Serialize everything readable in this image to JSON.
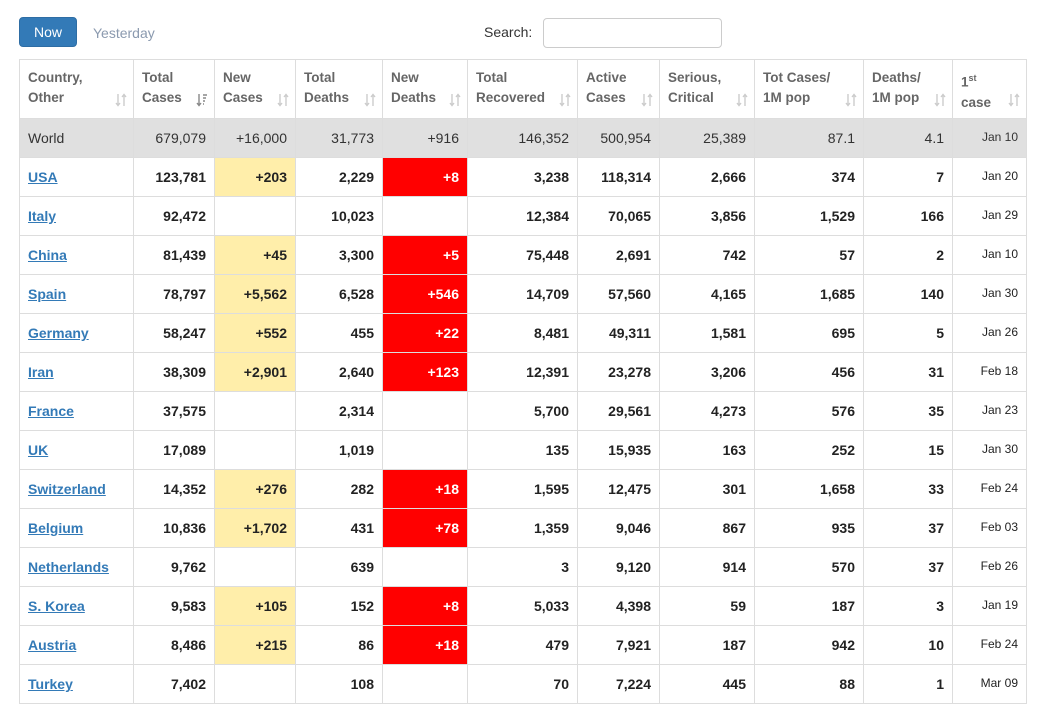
{
  "tabs": {
    "now": "Now",
    "yesterday": "Yesterday"
  },
  "search": {
    "label": "Search:",
    "value": ""
  },
  "columns": {
    "country": [
      "Country,",
      "Other"
    ],
    "total_cases": [
      "Total",
      "Cases"
    ],
    "new_cases": [
      "New",
      "Cases"
    ],
    "total_deaths": [
      "Total",
      "Deaths"
    ],
    "new_deaths": [
      "New",
      "Deaths"
    ],
    "total_recovered": [
      "Total",
      "Recovered"
    ],
    "active_cases": [
      "Active",
      "Cases"
    ],
    "serious": [
      "Serious,",
      "Critical"
    ],
    "tot_cases_1m": [
      "Tot Cases/",
      "1M pop"
    ],
    "deaths_1m": [
      "Deaths/",
      "1M pop"
    ],
    "first_case": [
      "1",
      "st",
      "case"
    ]
  },
  "world": {
    "country": "World",
    "total_cases": "679,079",
    "new_cases": "+16,000",
    "total_deaths": "31,773",
    "new_deaths": "+916",
    "total_recovered": "146,352",
    "active_cases": "500,954",
    "serious": "25,389",
    "tot_cases_1m": "87.1",
    "deaths_1m": "4.1",
    "first_case": "Jan 10"
  },
  "rows": [
    {
      "country": "USA",
      "total_cases": "123,781",
      "new_cases": "+203",
      "total_deaths": "2,229",
      "new_deaths": "+8",
      "total_recovered": "3,238",
      "active_cases": "118,314",
      "serious": "2,666",
      "tot_cases_1m": "374",
      "deaths_1m": "7",
      "first_case": "Jan 20"
    },
    {
      "country": "Italy",
      "total_cases": "92,472",
      "new_cases": "",
      "total_deaths": "10,023",
      "new_deaths": "",
      "total_recovered": "12,384",
      "active_cases": "70,065",
      "serious": "3,856",
      "tot_cases_1m": "1,529",
      "deaths_1m": "166",
      "first_case": "Jan 29"
    },
    {
      "country": "China",
      "total_cases": "81,439",
      "new_cases": "+45",
      "total_deaths": "3,300",
      "new_deaths": "+5",
      "total_recovered": "75,448",
      "active_cases": "2,691",
      "serious": "742",
      "tot_cases_1m": "57",
      "deaths_1m": "2",
      "first_case": "Jan 10"
    },
    {
      "country": "Spain",
      "total_cases": "78,797",
      "new_cases": "+5,562",
      "total_deaths": "6,528",
      "new_deaths": "+546",
      "total_recovered": "14,709",
      "active_cases": "57,560",
      "serious": "4,165",
      "tot_cases_1m": "1,685",
      "deaths_1m": "140",
      "first_case": "Jan 30"
    },
    {
      "country": "Germany",
      "total_cases": "58,247",
      "new_cases": "+552",
      "total_deaths": "455",
      "new_deaths": "+22",
      "total_recovered": "8,481",
      "active_cases": "49,311",
      "serious": "1,581",
      "tot_cases_1m": "695",
      "deaths_1m": "5",
      "first_case": "Jan 26"
    },
    {
      "country": "Iran",
      "total_cases": "38,309",
      "new_cases": "+2,901",
      "total_deaths": "2,640",
      "new_deaths": "+123",
      "total_recovered": "12,391",
      "active_cases": "23,278",
      "serious": "3,206",
      "tot_cases_1m": "456",
      "deaths_1m": "31",
      "first_case": "Feb 18"
    },
    {
      "country": "France",
      "total_cases": "37,575",
      "new_cases": "",
      "total_deaths": "2,314",
      "new_deaths": "",
      "total_recovered": "5,700",
      "active_cases": "29,561",
      "serious": "4,273",
      "tot_cases_1m": "576",
      "deaths_1m": "35",
      "first_case": "Jan 23"
    },
    {
      "country": "UK",
      "total_cases": "17,089",
      "new_cases": "",
      "total_deaths": "1,019",
      "new_deaths": "",
      "total_recovered": "135",
      "active_cases": "15,935",
      "serious": "163",
      "tot_cases_1m": "252",
      "deaths_1m": "15",
      "first_case": "Jan 30"
    },
    {
      "country": "Switzerland",
      "total_cases": "14,352",
      "new_cases": "+276",
      "total_deaths": "282",
      "new_deaths": "+18",
      "total_recovered": "1,595",
      "active_cases": "12,475",
      "serious": "301",
      "tot_cases_1m": "1,658",
      "deaths_1m": "33",
      "first_case": "Feb 24"
    },
    {
      "country": "Belgium",
      "total_cases": "10,836",
      "new_cases": "+1,702",
      "total_deaths": "431",
      "new_deaths": "+78",
      "total_recovered": "1,359",
      "active_cases": "9,046",
      "serious": "867",
      "tot_cases_1m": "935",
      "deaths_1m": "37",
      "first_case": "Feb 03"
    },
    {
      "country": "Netherlands",
      "total_cases": "9,762",
      "new_cases": "",
      "total_deaths": "639",
      "new_deaths": "",
      "total_recovered": "3",
      "active_cases": "9,120",
      "serious": "914",
      "tot_cases_1m": "570",
      "deaths_1m": "37",
      "first_case": "Feb 26"
    },
    {
      "country": "S. Korea",
      "total_cases": "9,583",
      "new_cases": "+105",
      "total_deaths": "152",
      "new_deaths": "+8",
      "total_recovered": "5,033",
      "active_cases": "4,398",
      "serious": "59",
      "tot_cases_1m": "187",
      "deaths_1m": "3",
      "first_case": "Jan 19"
    },
    {
      "country": "Austria",
      "total_cases": "8,486",
      "new_cases": "+215",
      "total_deaths": "86",
      "new_deaths": "+18",
      "total_recovered": "479",
      "active_cases": "7,921",
      "serious": "187",
      "tot_cases_1m": "942",
      "deaths_1m": "10",
      "first_case": "Feb 24"
    },
    {
      "country": "Turkey",
      "total_cases": "7,402",
      "new_cases": "",
      "total_deaths": "108",
      "new_deaths": "",
      "total_recovered": "70",
      "active_cases": "7,224",
      "serious": "445",
      "tot_cases_1m": "88",
      "deaths_1m": "1",
      "first_case": "Mar 09"
    }
  ],
  "colors": {
    "primary": "#337ab7",
    "new_cases_bg": "#ffeeaa",
    "new_deaths_bg": "#ff0000",
    "world_bg": "#e0e0e0"
  }
}
